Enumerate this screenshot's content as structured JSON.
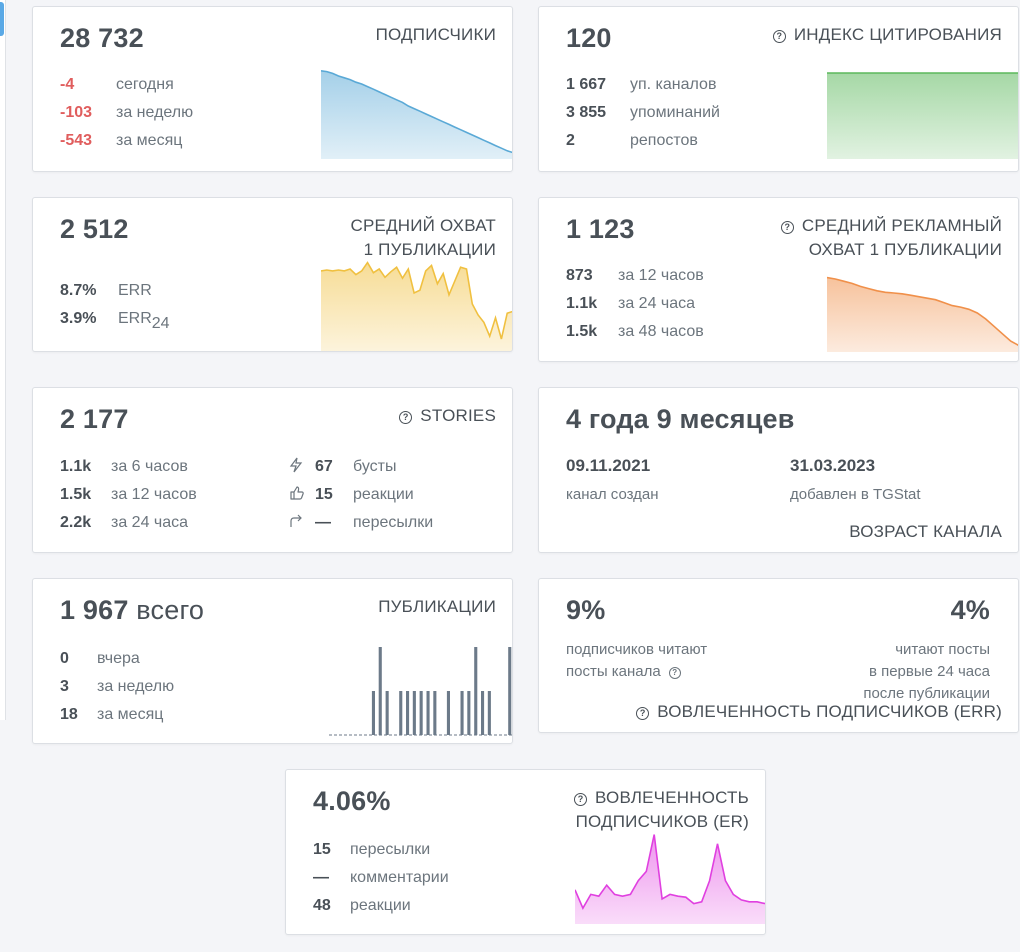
{
  "colors": {
    "text": "#495057",
    "muted": "#6c757d",
    "negative": "#e05d5d",
    "subscribers_chart": "#5aa9d6",
    "citation_chart": "#5cb85c",
    "reach_chart": "#f0c040",
    "ad_reach_chart": "#f0904a",
    "posts_chart": "#6c7a89",
    "er_chart": "#e040e0"
  },
  "subscribers": {
    "value": "28 732",
    "title": "ПОДПИСЧИКИ",
    "rows": [
      {
        "value": "-4",
        "label": "сегодня"
      },
      {
        "value": "-103",
        "label": "за неделю"
      },
      {
        "value": "-543",
        "label": "за месяц"
      }
    ]
  },
  "citation": {
    "value": "120",
    "title": "ИНДЕКС ЦИТИРОВАНИЯ",
    "help_icon": "question-circle-icon",
    "rows": [
      {
        "value": "1 667",
        "label": "уп. каналов"
      },
      {
        "value": "3 855",
        "label": "упоминаний"
      },
      {
        "value": "2",
        "label": "репостов"
      }
    ]
  },
  "reach": {
    "value": "2 512",
    "title_line1": "СРЕДНИЙ ОХВАТ",
    "title_line2": "1 ПУБЛИКАЦИИ",
    "rows": [
      {
        "value": "8.7%",
        "label": "ERR",
        "suffix": ""
      },
      {
        "value": "3.9%",
        "label": "ERR",
        "suffix": "24"
      }
    ]
  },
  "ad_reach": {
    "value": "1 123",
    "title_line1": "СРЕДНИЙ РЕКЛАМНЫЙ",
    "title_line2": "ОХВАТ 1 ПУБЛИКАЦИИ",
    "help_icon": "question-circle-icon",
    "rows": [
      {
        "value": "873",
        "label": "за 12 часов"
      },
      {
        "value": "1.1k",
        "label": "за 24 часа"
      },
      {
        "value": "1.5k",
        "label": "за 48 часов"
      }
    ]
  },
  "stories": {
    "value": "2 177",
    "title": "STORIES",
    "help_icon": "question-circle-icon",
    "rows": [
      {
        "value": "1.1k",
        "label": "за 6 часов"
      },
      {
        "value": "1.5k",
        "label": "за 12 часов"
      },
      {
        "value": "2.2k",
        "label": "за 24 часа"
      }
    ],
    "rows_right": [
      {
        "icon": "lightning-icon",
        "value": "67",
        "label": "бусты"
      },
      {
        "icon": "thumbs-up-icon",
        "value": "15",
        "label": "реакции"
      },
      {
        "icon": "share-arrow-icon",
        "value": "—",
        "label": "пересылки"
      }
    ]
  },
  "age": {
    "value": "4 года 9 месяцев",
    "created_date": "09.11.2021",
    "created_label": "канал создан",
    "added_date": "31.03.2023",
    "added_label": "добавлен в TGStat",
    "title": "ВОЗРАСТ КАНАЛА"
  },
  "posts": {
    "value": "1 967",
    "value_suffix": "всего",
    "title": "ПУБЛИКАЦИИ",
    "rows": [
      {
        "value": "0",
        "label": "вчера"
      },
      {
        "value": "3",
        "label": "за неделю"
      },
      {
        "value": "18",
        "label": "за месяц"
      }
    ]
  },
  "err": {
    "left_value": "9%",
    "left_text_line1": "подписчиков читают",
    "left_text_line2": "посты канала",
    "right_value": "4%",
    "right_text_line1": "читают посты",
    "right_text_line2": "в первые 24 часа",
    "right_text_line3": "после публикации",
    "title": "ВОВЛЕЧЕННОСТЬ ПОДПИСЧИКОВ (ERR)",
    "help_icon": "question-circle-icon"
  },
  "er": {
    "value": "4.06%",
    "title_line1": "ВОВЛЕЧЕННОСТЬ",
    "title_line2": "ПОДПИСЧИКОВ (ER)",
    "help_icon": "question-circle-icon",
    "rows": [
      {
        "value": "15",
        "label": "пересылки"
      },
      {
        "value": "—",
        "label": "комментарии"
      },
      {
        "value": "48",
        "label": "реакции"
      }
    ]
  },
  "sparklines": {
    "subscribers": [
      0.98,
      0.97,
      0.95,
      0.92,
      0.9,
      0.88,
      0.85,
      0.83,
      0.8,
      0.77,
      0.74,
      0.71,
      0.68,
      0.65,
      0.62,
      0.58,
      0.55,
      0.52,
      0.49,
      0.46,
      0.43,
      0.4,
      0.37,
      0.34,
      0.31,
      0.28,
      0.25,
      0.22,
      0.19,
      0.16,
      0.13,
      0.1,
      0.07,
      0.05
    ],
    "citation": [
      1,
      1,
      1,
      1,
      1,
      1,
      1,
      1,
      1,
      1
    ],
    "reach": [
      0.86,
      0.87,
      0.86,
      0.87,
      0.86,
      0.88,
      0.82,
      0.86,
      0.95,
      0.84,
      0.88,
      0.79,
      0.85,
      0.9,
      0.78,
      0.88,
      0.62,
      0.65,
      0.86,
      0.92,
      0.72,
      0.83,
      0.6,
      0.75,
      0.9,
      0.88,
      0.5,
      0.38,
      0.3,
      0.15,
      0.35,
      0.12,
      0.4,
      0.42
    ],
    "ad_reach": [
      0.98,
      0.96,
      0.93,
      0.9,
      0.86,
      0.83,
      0.8,
      0.78,
      0.77,
      0.76,
      0.74,
      0.72,
      0.7,
      0.68,
      0.64,
      0.6,
      0.58,
      0.55,
      0.5,
      0.42,
      0.32,
      0.22,
      0.12,
      0.06
    ],
    "posts": [
      0,
      0,
      0,
      0,
      0,
      0,
      0.5,
      1,
      0.5,
      0,
      0.5,
      0.5,
      0.5,
      0.5,
      0.5,
      0.5,
      0,
      0.5,
      0,
      0.5,
      0.5,
      1,
      0.5,
      0.5,
      0,
      0,
      1
    ],
    "er": [
      0.35,
      0.15,
      0.3,
      0.28,
      0.4,
      0.3,
      0.28,
      0.3,
      0.45,
      0.55,
      0.95,
      0.25,
      0.3,
      0.28,
      0.27,
      0.2,
      0.22,
      0.45,
      0.85,
      0.45,
      0.3,
      0.24,
      0.22,
      0.22,
      0.2
    ]
  }
}
